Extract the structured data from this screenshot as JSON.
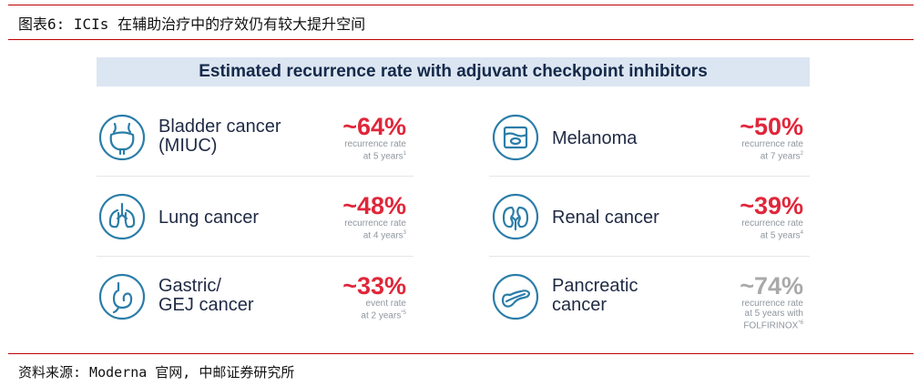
{
  "figure_title": "图表6: ICIs 在辅助治疗中的疗效仍有较大提升空间",
  "banner": "Estimated recurrence rate with adjuvant checkpoint inhibitors",
  "colors": {
    "rule": "#c00000",
    "accent": "#e0263a",
    "muted": "#a9a9a9",
    "navy": "#1f2a44",
    "icon": "#2b7da8"
  },
  "cards": [
    {
      "icon": "bladder-icon",
      "line1": "Bladder cancer",
      "line2": "(MIUC)",
      "pct": "~64%",
      "sub1": "recurrence rate",
      "sub2": "at 5 years",
      "note": "1"
    },
    {
      "icon": "melanoma-icon",
      "line1": "Melanoma",
      "line2": "",
      "pct": "~50%",
      "sub1": "recurrence rate",
      "sub2": "at 7 years",
      "note": "2"
    },
    {
      "icon": "lung-icon",
      "line1": "Lung cancer",
      "line2": "",
      "pct": "~48%",
      "sub1": "recurrence rate",
      "sub2": "at 4 years",
      "note": "3"
    },
    {
      "icon": "kidney-icon",
      "line1": "Renal cancer",
      "line2": "",
      "pct": "~39%",
      "sub1": "recurrence rate",
      "sub2": "at 5 years",
      "note": "4"
    },
    {
      "icon": "stomach-icon",
      "line1": "Gastric/",
      "line2": "GEJ cancer",
      "pct": "~33%",
      "sub1": "event rate",
      "sub2": "at 2 years",
      "note": "*5"
    },
    {
      "icon": "pancreas-icon",
      "line1": "Pancreatic",
      "line2": "cancer",
      "pct": "~74%",
      "sub1": "recurrence rate",
      "sub2": "at 5 years with",
      "sub3": "FOLFIRINOX",
      "note": "*6"
    }
  ],
  "source": "资料来源: Moderna 官网, 中邮证券研究所"
}
